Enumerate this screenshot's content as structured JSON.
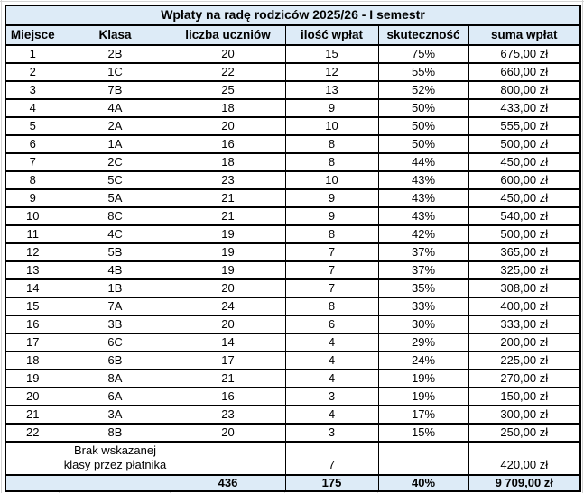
{
  "title": "Wpłaty na radę rodziców 2025/26 - I semestr",
  "columns": [
    "Miejsce",
    "Klasa",
    "liczba uczniów",
    "ilość wpłat",
    "skuteczność",
    "suma wpłat"
  ],
  "rows": [
    [
      "1",
      "2B",
      "20",
      "15",
      "75%",
      "675,00 zł"
    ],
    [
      "2",
      "1C",
      "22",
      "12",
      "55%",
      "660,00 zł"
    ],
    [
      "3",
      "7B",
      "25",
      "13",
      "52%",
      "800,00 zł"
    ],
    [
      "4",
      "4A",
      "18",
      "9",
      "50%",
      "433,00 zł"
    ],
    [
      "5",
      "2A",
      "20",
      "10",
      "50%",
      "555,00 zł"
    ],
    [
      "6",
      "1A",
      "16",
      "8",
      "50%",
      "500,00 zł"
    ],
    [
      "7",
      "2C",
      "18",
      "8",
      "44%",
      "450,00 zł"
    ],
    [
      "8",
      "5C",
      "23",
      "10",
      "43%",
      "600,00 zł"
    ],
    [
      "9",
      "5A",
      "21",
      "9",
      "43%",
      "450,00 zł"
    ],
    [
      "10",
      "8C",
      "21",
      "9",
      "43%",
      "540,00 zł"
    ],
    [
      "11",
      "4C",
      "19",
      "8",
      "42%",
      "500,00 zł"
    ],
    [
      "12",
      "5B",
      "19",
      "7",
      "37%",
      "365,00 zł"
    ],
    [
      "13",
      "4B",
      "19",
      "7",
      "37%",
      "325,00 zł"
    ],
    [
      "14",
      "1B",
      "20",
      "7",
      "35%",
      "308,00 zł"
    ],
    [
      "15",
      "7A",
      "24",
      "8",
      "33%",
      "400,00 zł"
    ],
    [
      "16",
      "3B",
      "20",
      "6",
      "30%",
      "333,00 zł"
    ],
    [
      "17",
      "6C",
      "14",
      "4",
      "29%",
      "200,00 zł"
    ],
    [
      "18",
      "6B",
      "17",
      "4",
      "24%",
      "225,00 zł"
    ],
    [
      "19",
      "8A",
      "21",
      "4",
      "19%",
      "270,00 zł"
    ],
    [
      "20",
      "6A",
      "16",
      "3",
      "19%",
      "150,00 zł"
    ],
    [
      "21",
      "3A",
      "23",
      "4",
      "17%",
      "300,00 zł"
    ],
    [
      "22",
      "8B",
      "20",
      "3",
      "15%",
      "250,00 zł"
    ]
  ],
  "unassigned_row": {
    "klasa_line1": "Brak wskazanej",
    "klasa_line2": "klasy przez płatnika",
    "ilosc_wplat": "7",
    "suma_wplat": "420,00 zł"
  },
  "total_row": {
    "liczba_uczniow": "436",
    "ilosc_wplat": "175",
    "skutecznosc": "40%",
    "suma_wplat": "9 709,00 zł"
  },
  "colors": {
    "header_fill": "#ddebf7",
    "border": "#000000",
    "gridline": "#d4d4d4",
    "text": "#000000"
  }
}
